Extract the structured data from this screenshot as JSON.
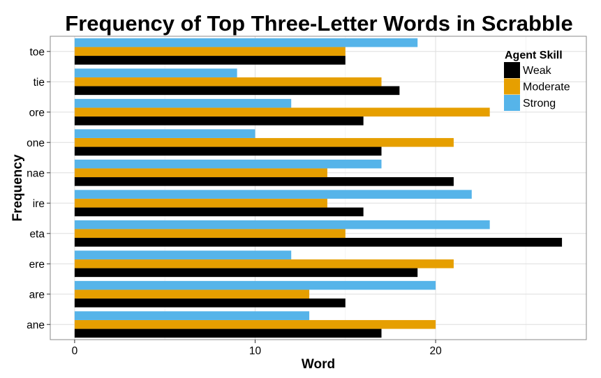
{
  "chart_data": {
    "type": "bar",
    "orientation": "horizontal",
    "title": "Frequency of Top Three-Letter Words in Scrabble",
    "xlabel": "Word",
    "ylabel": "Frequency",
    "categories": [
      "ane",
      "are",
      "ere",
      "eta",
      "ire",
      "nae",
      "one",
      "ore",
      "tie",
      "toe"
    ],
    "series": [
      {
        "name": "Weak",
        "color": "#000000",
        "values": [
          17,
          15,
          19,
          27,
          16,
          21,
          17,
          16,
          18,
          15
        ]
      },
      {
        "name": "Moderate",
        "color": "#E69F00",
        "values": [
          20,
          13,
          21,
          15,
          14,
          14,
          21,
          23,
          17,
          15
        ]
      },
      {
        "name": "Strong",
        "color": "#56B4E9",
        "values": [
          13,
          20,
          12,
          23,
          22,
          17,
          10,
          12,
          9,
          19
        ]
      }
    ],
    "xlim": [
      -1.35,
      28.35
    ],
    "xticks": [
      0,
      10,
      20
    ],
    "grid": true,
    "legend": {
      "title": "Agent Skill",
      "position": "top-right"
    }
  }
}
